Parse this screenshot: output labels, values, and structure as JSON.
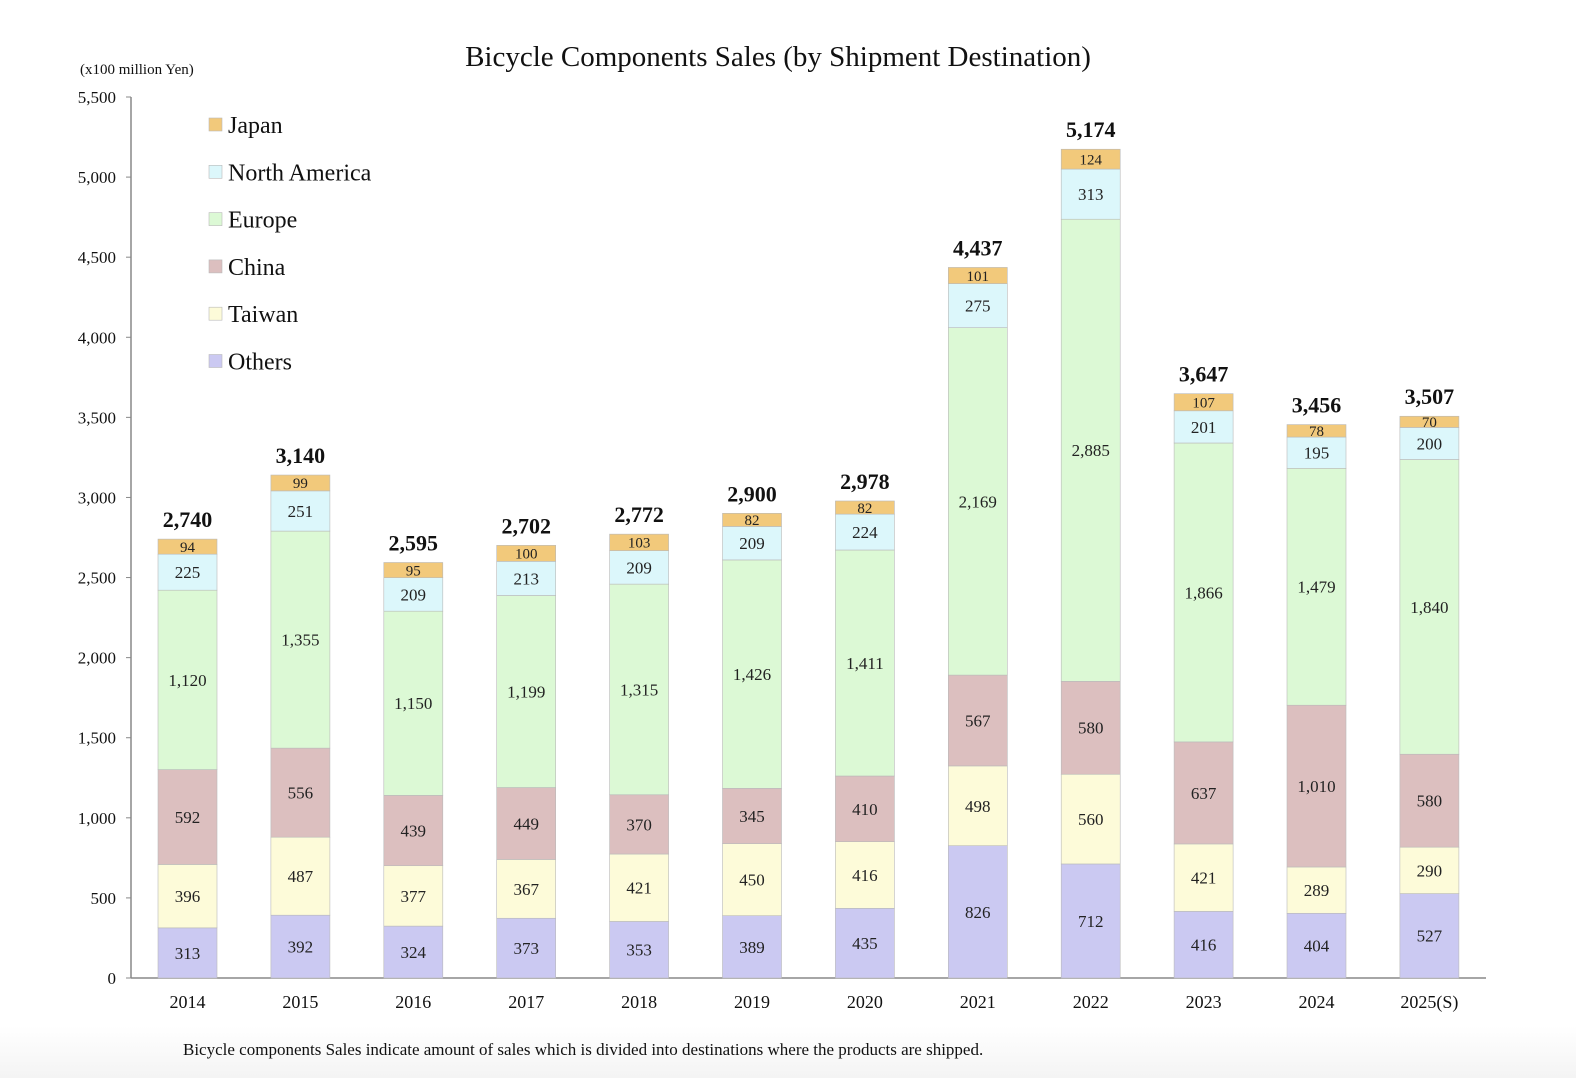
{
  "chart_data": {
    "type": "bar",
    "stacked": true,
    "title": "Bicycle Components Sales (by Shipment Destination)",
    "unit_label": "(x100 million Yen)",
    "xlabel": "",
    "ylabel": "",
    "ylim": [
      0,
      5500
    ],
    "yticks": [
      0,
      500,
      1000,
      1500,
      2000,
      2500,
      3000,
      3500,
      4000,
      4500,
      5000,
      5500
    ],
    "grid": false,
    "legend_position": "top-left",
    "categories": [
      "2014",
      "2015",
      "2016",
      "2017",
      "2018",
      "2019",
      "2020",
      "2021",
      "2022",
      "2023",
      "2024",
      "2025(S)"
    ],
    "totals": [
      2740,
      3140,
      2595,
      2702,
      2772,
      2900,
      2978,
      4437,
      5174,
      3647,
      3456,
      3507
    ],
    "series": [
      {
        "name": "Others",
        "color": "#cbc9f2",
        "values": [
          313,
          392,
          324,
          373,
          353,
          389,
          435,
          826,
          712,
          416,
          404,
          527
        ]
      },
      {
        "name": "Taiwan",
        "color": "#fdfbd9",
        "values": [
          396,
          487,
          377,
          367,
          421,
          450,
          416,
          498,
          560,
          421,
          289,
          290
        ]
      },
      {
        "name": "China",
        "color": "#dcbfbf",
        "values": [
          592,
          556,
          439,
          449,
          370,
          345,
          410,
          567,
          580,
          637,
          1010,
          580
        ]
      },
      {
        "name": "Europe",
        "color": "#dcf9d5",
        "values": [
          1120,
          1355,
          1150,
          1199,
          1315,
          1426,
          1411,
          2169,
          2885,
          1866,
          1479,
          1840
        ]
      },
      {
        "name": "North America",
        "color": "#dcf7fb",
        "values": [
          225,
          251,
          209,
          213,
          209,
          209,
          224,
          275,
          313,
          201,
          195,
          200
        ]
      },
      {
        "name": "Japan",
        "color": "#f2c97b",
        "values": [
          94,
          99,
          95,
          100,
          103,
          82,
          82,
          101,
          124,
          107,
          78,
          70
        ]
      }
    ],
    "legend_order": [
      "Japan",
      "North America",
      "Europe",
      "China",
      "Taiwan",
      "Others"
    ],
    "footnote": "Bicycle components Sales indicate amount of sales which is divided into destinations where the products are shipped."
  }
}
